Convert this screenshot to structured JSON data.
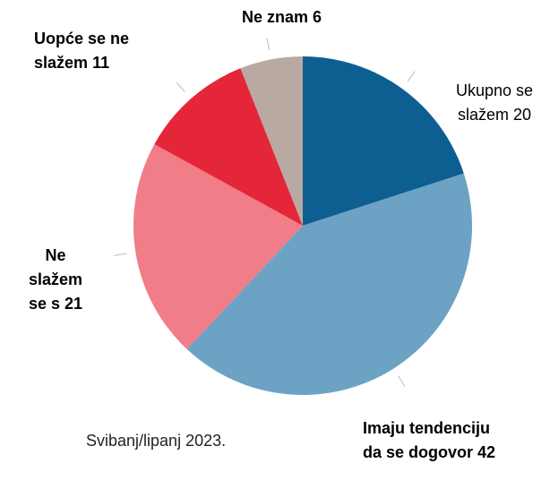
{
  "chart_data": {
    "type": "pie",
    "categories": [
      "Ukupno se slažem",
      "Imaju tendenciju da se dogovor",
      "Ne slažem se s",
      "Uopće se ne slažem",
      "Ne znam"
    ],
    "values": [
      20,
      42,
      21,
      11,
      6
    ],
    "colors": [
      "#0d5f91",
      "#6ca3c4",
      "#f07d88",
      "#e52638",
      "#b8aaa2"
    ],
    "note": "Svibanj/lipanj 2023."
  }
}
